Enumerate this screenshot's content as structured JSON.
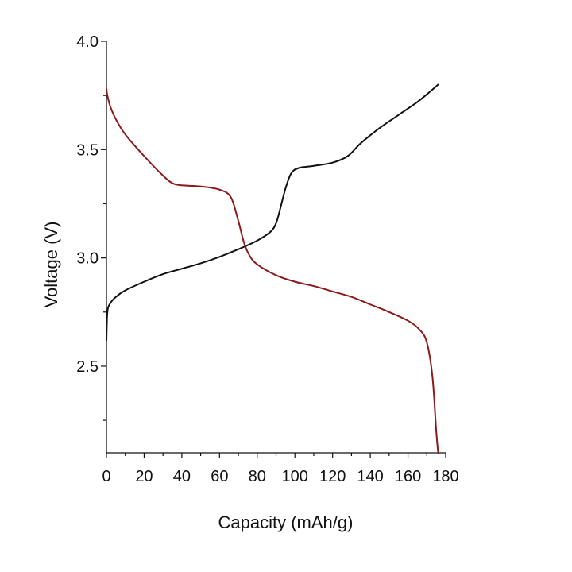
{
  "chart_data": {
    "type": "line",
    "xlabel": "Capacity (mAh/g)",
    "ylabel": "Voltage (V)",
    "xlim": [
      0,
      180
    ],
    "ylim": [
      2.1,
      4.0
    ],
    "x_ticks": [
      0,
      20,
      40,
      60,
      80,
      100,
      120,
      140,
      160,
      180
    ],
    "x_tick_labels": [
      "0",
      "20",
      "40",
      "60",
      "80",
      "100",
      "120",
      "140",
      "160",
      "180"
    ],
    "y_ticks": [
      2.5,
      3.0,
      3.5,
      4.0
    ],
    "y_tick_labels": [
      "2.5",
      "3.0",
      "3.5",
      "4.0"
    ],
    "grid": false,
    "series": [
      {
        "color": "#111111",
        "points": [
          [
            0,
            2.62
          ],
          [
            0.5,
            2.75
          ],
          [
            2,
            2.79
          ],
          [
            5,
            2.82
          ],
          [
            10,
            2.85
          ],
          [
            20,
            2.89
          ],
          [
            30,
            2.925
          ],
          [
            40,
            2.95
          ],
          [
            50,
            2.975
          ],
          [
            60,
            3.005
          ],
          [
            70,
            3.04
          ],
          [
            80,
            3.08
          ],
          [
            87,
            3.12
          ],
          [
            90,
            3.16
          ],
          [
            92,
            3.22
          ],
          [
            95,
            3.32
          ],
          [
            98,
            3.39
          ],
          [
            102,
            3.415
          ],
          [
            110,
            3.425
          ],
          [
            120,
            3.44
          ],
          [
            128,
            3.47
          ],
          [
            135,
            3.53
          ],
          [
            145,
            3.6
          ],
          [
            155,
            3.66
          ],
          [
            165,
            3.72
          ],
          [
            172,
            3.77
          ],
          [
            176,
            3.8
          ]
        ]
      },
      {
        "color": "#8b1a1a",
        "points": [
          [
            0,
            3.78
          ],
          [
            0.5,
            3.75
          ],
          [
            2,
            3.7
          ],
          [
            5,
            3.64
          ],
          [
            10,
            3.57
          ],
          [
            20,
            3.47
          ],
          [
            30,
            3.38
          ],
          [
            35,
            3.345
          ],
          [
            40,
            3.335
          ],
          [
            50,
            3.33
          ],
          [
            60,
            3.315
          ],
          [
            66,
            3.28
          ],
          [
            70,
            3.17
          ],
          [
            73,
            3.07
          ],
          [
            76,
            3.01
          ],
          [
            80,
            2.97
          ],
          [
            90,
            2.92
          ],
          [
            100,
            2.89
          ],
          [
            110,
            2.87
          ],
          [
            120,
            2.845
          ],
          [
            130,
            2.82
          ],
          [
            140,
            2.785
          ],
          [
            150,
            2.75
          ],
          [
            160,
            2.71
          ],
          [
            166,
            2.67
          ],
          [
            170,
            2.61
          ],
          [
            173,
            2.45
          ],
          [
            175,
            2.2
          ],
          [
            176,
            2.1
          ]
        ]
      }
    ]
  }
}
